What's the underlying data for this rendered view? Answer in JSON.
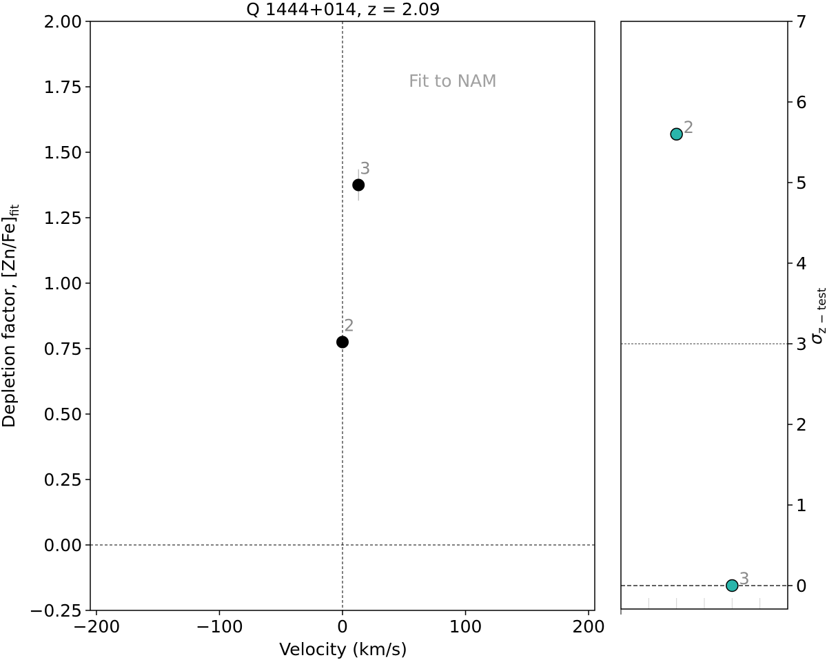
{
  "chart_data": [
    {
      "type": "scatter",
      "title": "Q 1444+014, z = 2.09",
      "xlabel": "Velocity (km/s)",
      "ylabel": "Depletion factor, [Zn/Fe]",
      "ylabel_subscript": "fit",
      "annotation": "Fit to NAM",
      "xlim": [
        -205,
        205
      ],
      "ylim": [
        -0.25,
        2.0
      ],
      "xticks": [
        -200,
        -100,
        0,
        100,
        200
      ],
      "xtick_labels": [
        "−200",
        "−100",
        "0",
        "100",
        "200"
      ],
      "yticks": [
        -0.25,
        0.0,
        0.25,
        0.5,
        0.75,
        1.0,
        1.25,
        1.5,
        1.75,
        2.0
      ],
      "ytick_labels": [
        "−0.25",
        "0.00",
        "0.25",
        "0.50",
        "0.75",
        "1.00",
        "1.25",
        "1.50",
        "1.75",
        "2.00"
      ],
      "reference_lines": {
        "x": 0,
        "y": 0
      },
      "marker_color": "#000000",
      "points": [
        {
          "label": "2",
          "x": 0,
          "y": 0.775,
          "err": 0.0
        },
        {
          "label": "3",
          "x": 13,
          "y": 1.375,
          "err": 0.06
        }
      ]
    },
    {
      "type": "scatter",
      "ylabel": "σ",
      "ylabel_subscript": "z − test",
      "ylim": [
        -0.3,
        7
      ],
      "yticks": [
        0,
        1,
        2,
        3,
        4,
        5,
        6,
        7
      ],
      "ytick_labels": [
        "0",
        "1",
        "2",
        "3",
        "4",
        "5",
        "6",
        "7"
      ],
      "ytick_side": "right",
      "threshold_line": 3,
      "baseline": 0,
      "marker_color": "#2ab5ab",
      "points": [
        {
          "label": "2",
          "x": 2,
          "y": 5.6
        },
        {
          "label": "3",
          "x": 4,
          "y": 0.0
        }
      ],
      "category_positions": [
        1,
        2,
        3,
        4,
        5
      ],
      "xlim": [
        0,
        6
      ]
    }
  ]
}
